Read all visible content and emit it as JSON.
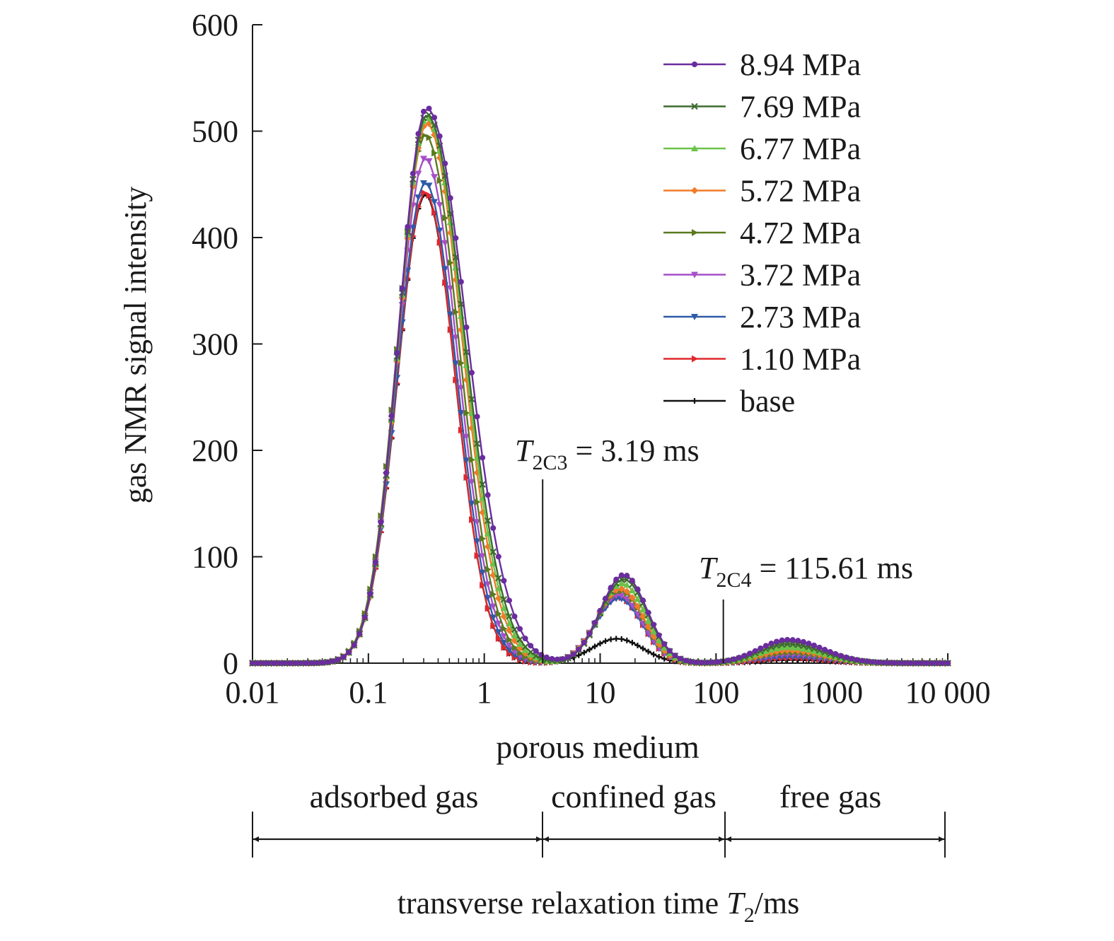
{
  "chart_data": {
    "type": "line",
    "title": "",
    "ylabel": "gas NMR signal intensity",
    "xlabel": {
      "prefix": "transverse relaxation time ",
      "italic": "T",
      "sub": "2",
      "suffix": "/ms"
    },
    "x_scale": "log",
    "xlim": [
      0.01,
      10000
    ],
    "ylim": [
      0,
      600
    ],
    "x_ticks": [
      {
        "value": 0.01,
        "label": "0.01"
      },
      {
        "value": 0.1,
        "label": "0.1"
      },
      {
        "value": 1,
        "label": "1"
      },
      {
        "value": 10,
        "label": "10"
      },
      {
        "value": 100,
        "label": "100"
      },
      {
        "value": 1000,
        "label": "1000"
      },
      {
        "value": 10000,
        "label": "10 000"
      }
    ],
    "y_ticks": [
      {
        "value": 0,
        "label": "0"
      },
      {
        "value": 100,
        "label": "100"
      },
      {
        "value": 200,
        "label": "200"
      },
      {
        "value": 300,
        "label": "300"
      },
      {
        "value": 400,
        "label": "400"
      },
      {
        "value": 500,
        "label": "500"
      },
      {
        "value": 600,
        "label": "600"
      }
    ],
    "grid": false,
    "legend_position": "top-right",
    "series": [
      {
        "name": "8.94 MPa",
        "color": "#6a2c9e",
        "marker": "circle",
        "peaks": [
          {
            "t": 0.32,
            "h": 522,
            "wl": 0.24,
            "wr": 0.34
          },
          {
            "t": 16,
            "h": 83,
            "wl": 0.2,
            "wr": 0.2
          },
          {
            "t": 420,
            "h": 22,
            "wl": 0.25,
            "wr": 0.3
          }
        ]
      },
      {
        "name": "7.69 MPa",
        "color": "#3d6b2e",
        "marker": "x",
        "peaks": [
          {
            "t": 0.32,
            "h": 516,
            "wl": 0.24,
            "wr": 0.32
          },
          {
            "t": 16,
            "h": 79,
            "wl": 0.2,
            "wr": 0.2
          },
          {
            "t": 420,
            "h": 18,
            "wl": 0.25,
            "wr": 0.3
          }
        ]
      },
      {
        "name": "6.77 MPa",
        "color": "#6cc24a",
        "marker": "triangle-up",
        "peaks": [
          {
            "t": 0.32,
            "h": 513,
            "wl": 0.24,
            "wr": 0.31
          },
          {
            "t": 15.5,
            "h": 75,
            "wl": 0.2,
            "wr": 0.2
          },
          {
            "t": 420,
            "h": 15,
            "wl": 0.25,
            "wr": 0.3
          }
        ]
      },
      {
        "name": "5.72 MPa",
        "color": "#f07b2a",
        "marker": "diamond",
        "peaks": [
          {
            "t": 0.32,
            "h": 508,
            "wl": 0.24,
            "wr": 0.3
          },
          {
            "t": 15,
            "h": 70,
            "wl": 0.2,
            "wr": 0.2
          },
          {
            "t": 430,
            "h": 12,
            "wl": 0.25,
            "wr": 0.3
          }
        ]
      },
      {
        "name": "4.72 MPa",
        "color": "#5a7a1e",
        "marker": "triangle-right",
        "peaks": [
          {
            "t": 0.31,
            "h": 497,
            "wl": 0.24,
            "wr": 0.29
          },
          {
            "t": 15,
            "h": 68,
            "wl": 0.2,
            "wr": 0.2
          },
          {
            "t": 430,
            "h": 10,
            "wl": 0.25,
            "wr": 0.3
          }
        ]
      },
      {
        "name": "3.72 MPa",
        "color": "#a64fc9",
        "marker": "triangle-down",
        "peaks": [
          {
            "t": 0.31,
            "h": 475,
            "wl": 0.24,
            "wr": 0.28
          },
          {
            "t": 14.5,
            "h": 64,
            "wl": 0.2,
            "wr": 0.2
          },
          {
            "t": 430,
            "h": 8,
            "wl": 0.25,
            "wr": 0.3
          }
        ]
      },
      {
        "name": "2.73 MPa",
        "color": "#2e5aa8",
        "marker": "triangle-down",
        "peaks": [
          {
            "t": 0.31,
            "h": 452,
            "wl": 0.24,
            "wr": 0.27
          },
          {
            "t": 14.5,
            "h": 61,
            "wl": 0.2,
            "wr": 0.2
          },
          {
            "t": 430,
            "h": 6,
            "wl": 0.25,
            "wr": 0.3
          }
        ]
      },
      {
        "name": "1.10 MPa",
        "color": "#e0282e",
        "marker": "triangle-right",
        "peaks": [
          {
            "t": 0.31,
            "h": 443,
            "wl": 0.24,
            "wr": 0.26
          },
          {
            "t": 14.5,
            "h": 62,
            "wl": 0.2,
            "wr": 0.2
          },
          {
            "t": 440,
            "h": 5,
            "wl": 0.25,
            "wr": 0.3
          }
        ]
      },
      {
        "name": "base",
        "color": "#111111",
        "marker": "plus",
        "peaks": [
          {
            "t": 0.31,
            "h": 441,
            "wl": 0.24,
            "wr": 0.26
          },
          {
            "t": 14,
            "h": 23,
            "wl": 0.22,
            "wr": 0.22
          },
          {
            "t": 460,
            "h": 3,
            "wl": 0.25,
            "wr": 0.3
          }
        ]
      }
    ],
    "cutoffs": [
      {
        "value": 3.19,
        "label_italic": "T",
        "label_sub": "2C3",
        "label_rest": " = 3.19 ms"
      },
      {
        "value": 115.61,
        "label_italic": "T",
        "label_sub": "2C4",
        "label_rest": " = 115.61 ms"
      }
    ],
    "regions": {
      "header": "porous medium",
      "items": [
        {
          "label": "adsorbed gas",
          "from": 0.01,
          "to": 3.19
        },
        {
          "label": "confined gas",
          "from": 3.19,
          "to": 115.61
        },
        {
          "label": "free gas",
          "from": 115.61,
          "to": 10000
        }
      ]
    }
  }
}
